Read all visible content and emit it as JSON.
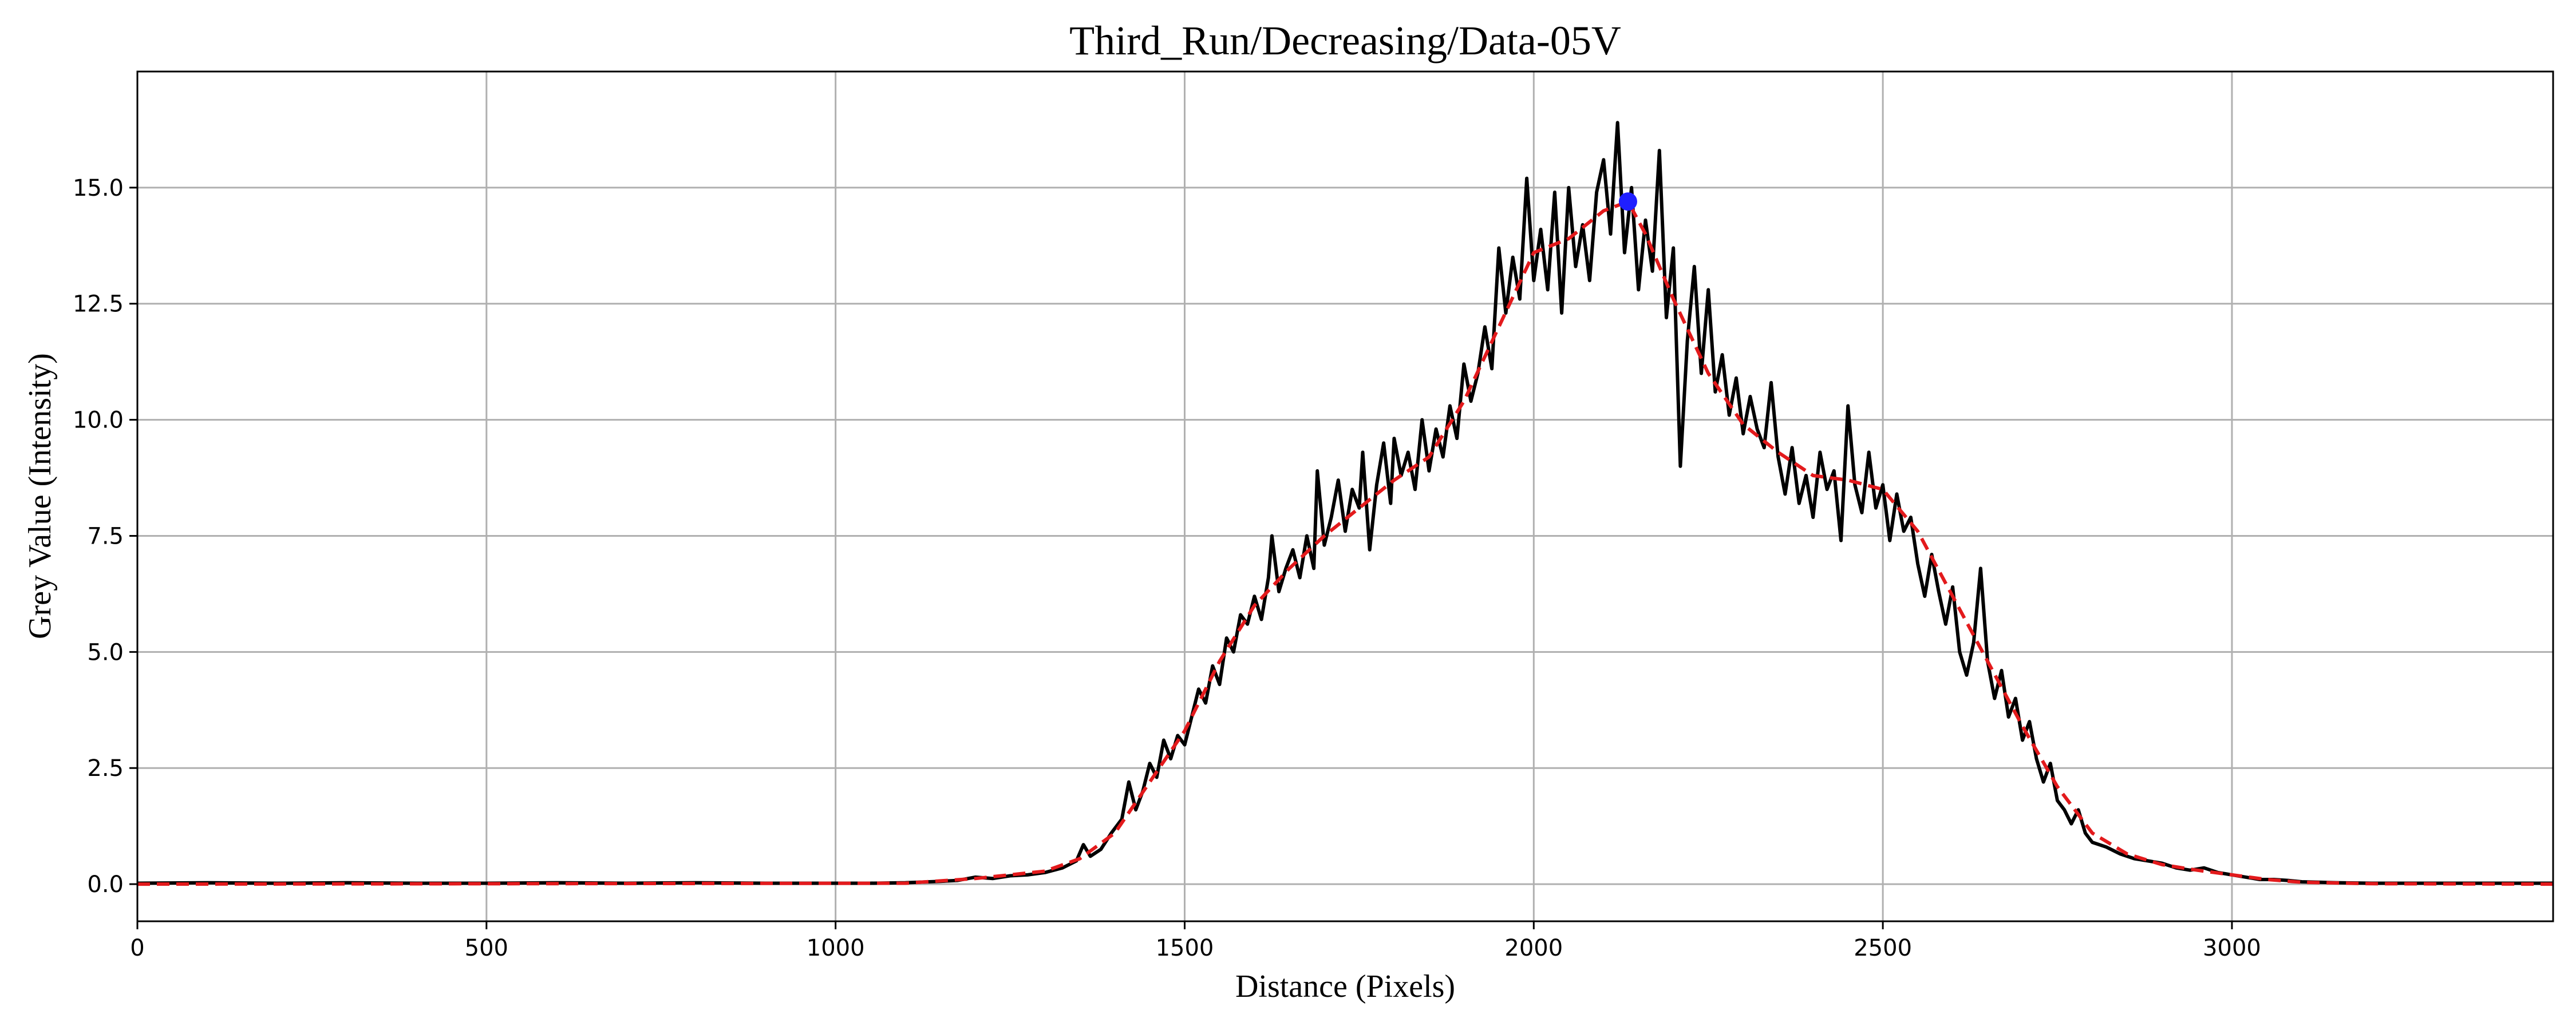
{
  "chart_data": {
    "type": "line",
    "title": "Third_Run/Decreasing/Data-05V",
    "xlabel": "Distance (Pixels)",
    "ylabel": "Grey Value (Intensity)",
    "xlim": [
      0,
      3460
    ],
    "ylim": [
      -0.8,
      17.5
    ],
    "xticks": [
      0,
      500,
      1000,
      1500,
      2000,
      2500,
      3000
    ],
    "yticks": [
      0.0,
      2.5,
      5.0,
      7.5,
      10.0,
      12.5,
      15.0
    ],
    "xtick_labels": [
      "0",
      "500",
      "1000",
      "1500",
      "2000",
      "2500",
      "3000"
    ],
    "ytick_labels": [
      "0.0",
      "2.5",
      "5.0",
      "7.5",
      "10.0",
      "12.5",
      "15.0"
    ],
    "grid": true,
    "legend": "none",
    "series": [
      {
        "style": "solid",
        "color": "#000000",
        "points": [
          [
            0,
            0.02
          ],
          [
            100,
            0.03
          ],
          [
            200,
            0.02
          ],
          [
            300,
            0.03
          ],
          [
            400,
            0.02
          ],
          [
            500,
            0.02
          ],
          [
            600,
            0.03
          ],
          [
            700,
            0.02
          ],
          [
            800,
            0.03
          ],
          [
            900,
            0.02
          ],
          [
            1000,
            0.02
          ],
          [
            1050,
            0.02
          ],
          [
            1100,
            0.03
          ],
          [
            1150,
            0.06
          ],
          [
            1175,
            0.08
          ],
          [
            1200,
            0.15
          ],
          [
            1225,
            0.12
          ],
          [
            1250,
            0.18
          ],
          [
            1275,
            0.2
          ],
          [
            1300,
            0.25
          ],
          [
            1325,
            0.35
          ],
          [
            1345,
            0.5
          ],
          [
            1355,
            0.85
          ],
          [
            1365,
            0.6
          ],
          [
            1380,
            0.75
          ],
          [
            1395,
            1.1
          ],
          [
            1410,
            1.4
          ],
          [
            1420,
            2.2
          ],
          [
            1430,
            1.6
          ],
          [
            1440,
            2.0
          ],
          [
            1450,
            2.6
          ],
          [
            1460,
            2.3
          ],
          [
            1470,
            3.1
          ],
          [
            1480,
            2.7
          ],
          [
            1490,
            3.2
          ],
          [
            1500,
            3.0
          ],
          [
            1510,
            3.6
          ],
          [
            1520,
            4.2
          ],
          [
            1530,
            3.9
          ],
          [
            1540,
            4.7
          ],
          [
            1550,
            4.3
          ],
          [
            1560,
            5.3
          ],
          [
            1570,
            5.0
          ],
          [
            1580,
            5.8
          ],
          [
            1590,
            5.6
          ],
          [
            1600,
            6.2
          ],
          [
            1610,
            5.7
          ],
          [
            1620,
            6.6
          ],
          [
            1625,
            7.5
          ],
          [
            1635,
            6.3
          ],
          [
            1645,
            6.8
          ],
          [
            1655,
            7.2
          ],
          [
            1665,
            6.6
          ],
          [
            1675,
            7.5
          ],
          [
            1685,
            6.8
          ],
          [
            1690,
            8.9
          ],
          [
            1700,
            7.3
          ],
          [
            1710,
            7.9
          ],
          [
            1720,
            8.7
          ],
          [
            1730,
            7.6
          ],
          [
            1740,
            8.5
          ],
          [
            1750,
            8.1
          ],
          [
            1755,
            9.3
          ],
          [
            1765,
            7.2
          ],
          [
            1775,
            8.6
          ],
          [
            1785,
            9.5
          ],
          [
            1795,
            8.2
          ],
          [
            1800,
            9.6
          ],
          [
            1810,
            8.8
          ],
          [
            1820,
            9.3
          ],
          [
            1830,
            8.5
          ],
          [
            1840,
            10.0
          ],
          [
            1850,
            8.9
          ],
          [
            1860,
            9.8
          ],
          [
            1870,
            9.2
          ],
          [
            1880,
            10.3
          ],
          [
            1890,
            9.6
          ],
          [
            1900,
            11.2
          ],
          [
            1910,
            10.4
          ],
          [
            1920,
            11.0
          ],
          [
            1930,
            12.0
          ],
          [
            1940,
            11.1
          ],
          [
            1950,
            13.7
          ],
          [
            1960,
            12.3
          ],
          [
            1970,
            13.5
          ],
          [
            1980,
            12.6
          ],
          [
            1990,
            15.2
          ],
          [
            2000,
            13.0
          ],
          [
            2010,
            14.1
          ],
          [
            2020,
            12.8
          ],
          [
            2030,
            14.9
          ],
          [
            2040,
            12.3
          ],
          [
            2050,
            15.0
          ],
          [
            2060,
            13.3
          ],
          [
            2070,
            14.2
          ],
          [
            2080,
            13.0
          ],
          [
            2090,
            14.9
          ],
          [
            2100,
            15.6
          ],
          [
            2110,
            14.0
          ],
          [
            2120,
            16.4
          ],
          [
            2130,
            13.6
          ],
          [
            2140,
            15.0
          ],
          [
            2150,
            12.8
          ],
          [
            2160,
            14.3
          ],
          [
            2170,
            13.2
          ],
          [
            2180,
            15.8
          ],
          [
            2190,
            12.2
          ],
          [
            2200,
            13.7
          ],
          [
            2210,
            9.0
          ],
          [
            2220,
            11.7
          ],
          [
            2230,
            13.3
          ],
          [
            2240,
            11.0
          ],
          [
            2250,
            12.8
          ],
          [
            2260,
            10.6
          ],
          [
            2270,
            11.4
          ],
          [
            2280,
            10.1
          ],
          [
            2290,
            10.9
          ],
          [
            2300,
            9.7
          ],
          [
            2310,
            10.5
          ],
          [
            2320,
            9.8
          ],
          [
            2330,
            9.4
          ],
          [
            2340,
            10.8
          ],
          [
            2350,
            9.2
          ],
          [
            2360,
            8.4
          ],
          [
            2370,
            9.4
          ],
          [
            2380,
            8.2
          ],
          [
            2390,
            8.8
          ],
          [
            2400,
            7.9
          ],
          [
            2410,
            9.3
          ],
          [
            2420,
            8.5
          ],
          [
            2430,
            8.9
          ],
          [
            2440,
            7.4
          ],
          [
            2450,
            10.3
          ],
          [
            2460,
            8.6
          ],
          [
            2470,
            8.0
          ],
          [
            2480,
            9.3
          ],
          [
            2490,
            8.1
          ],
          [
            2500,
            8.6
          ],
          [
            2510,
            7.4
          ],
          [
            2520,
            8.4
          ],
          [
            2530,
            7.6
          ],
          [
            2540,
            7.9
          ],
          [
            2550,
            6.9
          ],
          [
            2560,
            6.2
          ],
          [
            2570,
            7.1
          ],
          [
            2580,
            6.3
          ],
          [
            2590,
            5.6
          ],
          [
            2600,
            6.4
          ],
          [
            2610,
            5.0
          ],
          [
            2620,
            4.5
          ],
          [
            2630,
            5.2
          ],
          [
            2640,
            6.8
          ],
          [
            2650,
            4.8
          ],
          [
            2660,
            4.0
          ],
          [
            2670,
            4.6
          ],
          [
            2680,
            3.6
          ],
          [
            2690,
            4.0
          ],
          [
            2700,
            3.1
          ],
          [
            2710,
            3.5
          ],
          [
            2720,
            2.7
          ],
          [
            2730,
            2.2
          ],
          [
            2740,
            2.6
          ],
          [
            2750,
            1.8
          ],
          [
            2760,
            1.6
          ],
          [
            2770,
            1.3
          ],
          [
            2780,
            1.6
          ],
          [
            2790,
            1.1
          ],
          [
            2800,
            0.9
          ],
          [
            2820,
            0.8
          ],
          [
            2840,
            0.65
          ],
          [
            2860,
            0.55
          ],
          [
            2880,
            0.5
          ],
          [
            2900,
            0.45
          ],
          [
            2920,
            0.35
          ],
          [
            2940,
            0.3
          ],
          [
            2960,
            0.35
          ],
          [
            2980,
            0.25
          ],
          [
            3000,
            0.2
          ],
          [
            3020,
            0.15
          ],
          [
            3040,
            0.1
          ],
          [
            3060,
            0.1
          ],
          [
            3080,
            0.08
          ],
          [
            3100,
            0.05
          ],
          [
            3150,
            0.03
          ],
          [
            3200,
            0.02
          ],
          [
            3300,
            0.02
          ],
          [
            3400,
            0.02
          ],
          [
            3460,
            0.02
          ]
        ]
      },
      {
        "style": "dashed",
        "color": "#e31a1c",
        "points": [
          [
            0,
            0.0
          ],
          [
            1100,
            0.02
          ],
          [
            1200,
            0.12
          ],
          [
            1300,
            0.28
          ],
          [
            1350,
            0.55
          ],
          [
            1400,
            1.1
          ],
          [
            1450,
            2.2
          ],
          [
            1500,
            3.3
          ],
          [
            1550,
            4.8
          ],
          [
            1600,
            6.0
          ],
          [
            1650,
            6.8
          ],
          [
            1700,
            7.5
          ],
          [
            1750,
            8.1
          ],
          [
            1800,
            8.7
          ],
          [
            1850,
            9.2
          ],
          [
            1900,
            10.4
          ],
          [
            1950,
            12.0
          ],
          [
            2000,
            13.6
          ],
          [
            2050,
            13.9
          ],
          [
            2100,
            14.5
          ],
          [
            2135,
            14.7
          ],
          [
            2160,
            14.0
          ],
          [
            2200,
            12.6
          ],
          [
            2250,
            11.0
          ],
          [
            2300,
            9.9
          ],
          [
            2350,
            9.3
          ],
          [
            2400,
            8.8
          ],
          [
            2450,
            8.7
          ],
          [
            2500,
            8.5
          ],
          [
            2550,
            7.6
          ],
          [
            2600,
            6.2
          ],
          [
            2650,
            4.8
          ],
          [
            2700,
            3.4
          ],
          [
            2750,
            2.1
          ],
          [
            2800,
            1.1
          ],
          [
            2850,
            0.65
          ],
          [
            2900,
            0.42
          ],
          [
            2950,
            0.3
          ],
          [
            3000,
            0.2
          ],
          [
            3050,
            0.1
          ],
          [
            3100,
            0.04
          ],
          [
            3200,
            0.01
          ],
          [
            3460,
            0.0
          ]
        ]
      }
    ],
    "marker": {
      "x": 2135,
      "y": 14.7,
      "color": "#1f1fff"
    }
  }
}
